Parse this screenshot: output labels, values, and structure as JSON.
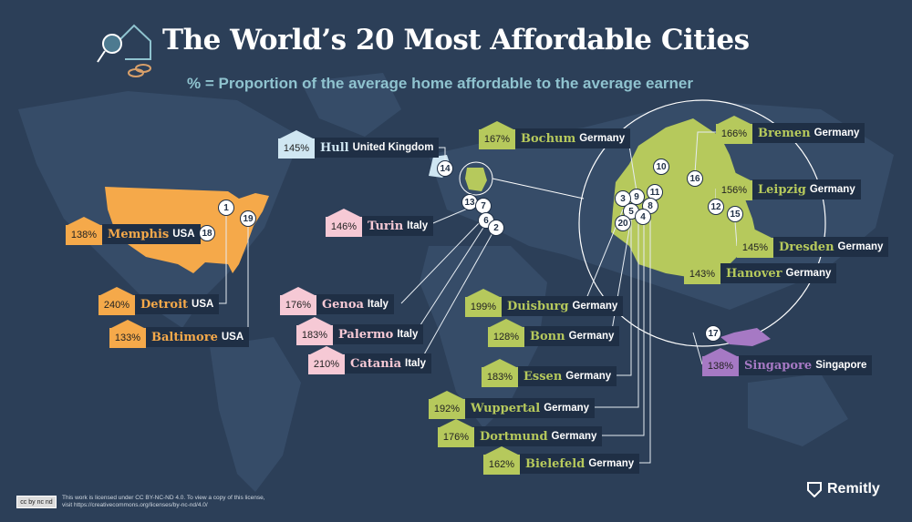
{
  "header": {
    "title": "The World’s 20 Most Affordable Cities",
    "subtitle": "% = Proportion of the average home affordable to the average earner"
  },
  "colors": {
    "background": "#2c3f58",
    "usa": "#f5a94a",
    "uk": "#cfe6f2",
    "italy": "#f6c9d5",
    "germany": "#b6c95c",
    "singapore": "#a679c4"
  },
  "labels": [
    {
      "percent": "145%",
      "city": "Hull",
      "country": "United Kingdom",
      "group": "uk"
    },
    {
      "percent": "138%",
      "city": "Memphis",
      "country": "USA",
      "group": "usa"
    },
    {
      "percent": "240%",
      "city": "Detroit",
      "country": "USA",
      "group": "usa"
    },
    {
      "percent": "133%",
      "city": "Baltimore",
      "country": "USA",
      "group": "usa"
    },
    {
      "percent": "146%",
      "city": "Turin",
      "country": "Italy",
      "group": "italy"
    },
    {
      "percent": "176%",
      "city": "Genoa",
      "country": "Italy",
      "group": "italy"
    },
    {
      "percent": "183%",
      "city": "Palermo",
      "country": "Italy",
      "group": "italy"
    },
    {
      "percent": "210%",
      "city": "Catania",
      "country": "Italy",
      "group": "italy"
    },
    {
      "percent": "167%",
      "city": "Bochum",
      "country": "Germany",
      "group": "germany"
    },
    {
      "percent": "199%",
      "city": "Duisburg",
      "country": "Germany",
      "group": "germany"
    },
    {
      "percent": "128%",
      "city": "Bonn",
      "country": "Germany",
      "group": "germany"
    },
    {
      "percent": "183%",
      "city": "Essen",
      "country": "Germany",
      "group": "germany"
    },
    {
      "percent": "192%",
      "city": "Wuppertal",
      "country": "Germany",
      "group": "germany"
    },
    {
      "percent": "176%",
      "city": "Dortmund",
      "country": "Germany",
      "group": "germany"
    },
    {
      "percent": "162%",
      "city": "Bielefeld",
      "country": "Germany",
      "group": "germany"
    },
    {
      "percent": "166%",
      "city": "Bremen",
      "country": "Germany",
      "group": "germany"
    },
    {
      "percent": "156%",
      "city": "Leipzig",
      "country": "Germany",
      "group": "germany"
    },
    {
      "percent": "145%",
      "city": "Dresden",
      "country": "Germany",
      "group": "germany"
    },
    {
      "percent": "143%",
      "city": "Hanover",
      "country": "Germany",
      "group": "germany"
    },
    {
      "percent": "138%",
      "city": "Singapore",
      "country": "Singapore",
      "group": "singapore"
    }
  ],
  "markers": [
    "1",
    "19",
    "18",
    "14",
    "13",
    "7",
    "6",
    "2",
    "10",
    "16",
    "11",
    "9",
    "3",
    "8",
    "5",
    "4",
    "20",
    "12",
    "15",
    "17"
  ],
  "license": {
    "badge": "cc by nc nd",
    "text1": "This work is licensed under CC BY-NC-ND 4.0. To view a copy of this license,",
    "text2": "visit https://creativecommons.org/licenses/by-nc-nd/4.0/"
  },
  "brand": {
    "name": "Remitly"
  }
}
